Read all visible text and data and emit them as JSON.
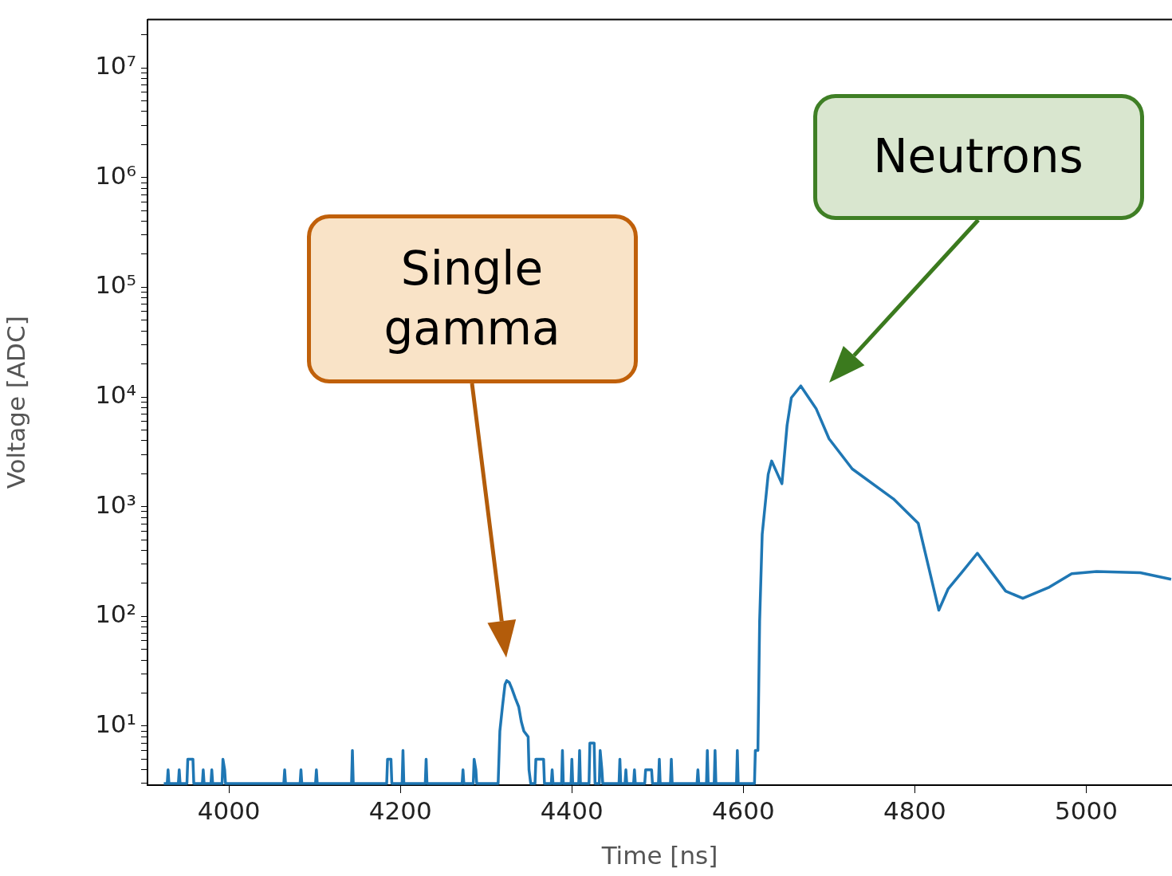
{
  "chart_data": {
    "type": "line",
    "xlabel": "Time [ns]",
    "ylabel": "Voltage [ADC]",
    "log": "y",
    "grid": false,
    "legend": false,
    "marker": "none",
    "line_style": "solid",
    "xlim": [
      3905,
      5100
    ],
    "xticks": [
      4000,
      4200,
      4400,
      4600,
      4800,
      5000
    ],
    "ylim": [
      2.9,
      27500000
    ],
    "yticks": [
      {
        "value": 3,
        "label": null
      },
      {
        "value": 4,
        "label": null
      },
      {
        "value": 5,
        "label": null
      },
      {
        "value": 6,
        "label": null
      },
      {
        "value": 7,
        "label": null
      },
      {
        "value": 8,
        "label": null
      },
      {
        "value": 9,
        "label": null
      },
      {
        "value": 10,
        "label": "10¹"
      },
      {
        "value": 20,
        "label": null
      },
      {
        "value": 30,
        "label": null
      },
      {
        "value": 40,
        "label": null
      },
      {
        "value": 50,
        "label": null
      },
      {
        "value": 60,
        "label": null
      },
      {
        "value": 70,
        "label": null
      },
      {
        "value": 80,
        "label": null
      },
      {
        "value": 90,
        "label": null
      },
      {
        "value": 100,
        "label": "10²"
      },
      {
        "value": 200,
        "label": null
      },
      {
        "value": 300,
        "label": null
      },
      {
        "value": 400,
        "label": null
      },
      {
        "value": 500,
        "label": null
      },
      {
        "value": 600,
        "label": null
      },
      {
        "value": 700,
        "label": null
      },
      {
        "value": 800,
        "label": null
      },
      {
        "value": 900,
        "label": null
      },
      {
        "value": 1000,
        "label": "10³"
      },
      {
        "value": 2000,
        "label": null
      },
      {
        "value": 3000,
        "label": null
      },
      {
        "value": 4000,
        "label": null
      },
      {
        "value": 5000,
        "label": null
      },
      {
        "value": 6000,
        "label": null
      },
      {
        "value": 7000,
        "label": null
      },
      {
        "value": 8000,
        "label": null
      },
      {
        "value": 9000,
        "label": null
      },
      {
        "value": 10000,
        "label": "10⁴"
      },
      {
        "value": 20000,
        "label": null
      },
      {
        "value": 30000,
        "label": null
      },
      {
        "value": 40000,
        "label": null
      },
      {
        "value": 50000,
        "label": null
      },
      {
        "value": 60000,
        "label": null
      },
      {
        "value": 70000,
        "label": null
      },
      {
        "value": 80000,
        "label": null
      },
      {
        "value": 90000,
        "label": null
      },
      {
        "value": 100000,
        "label": "10⁵"
      },
      {
        "value": 200000,
        "label": null
      },
      {
        "value": 300000,
        "label": null
      },
      {
        "value": 400000,
        "label": null
      },
      {
        "value": 500000,
        "label": null
      },
      {
        "value": 600000,
        "label": null
      },
      {
        "value": 700000,
        "label": null
      },
      {
        "value": 800000,
        "label": null
      },
      {
        "value": 900000,
        "label": null
      },
      {
        "value": 1000000,
        "label": "10⁶"
      },
      {
        "value": 2000000,
        "label": null
      },
      {
        "value": 3000000,
        "label": null
      },
      {
        "value": 4000000,
        "label": null
      },
      {
        "value": 5000000,
        "label": null
      },
      {
        "value": 6000000,
        "label": null
      },
      {
        "value": 7000000,
        "label": null
      },
      {
        "value": 8000000,
        "label": null
      },
      {
        "value": 9000000,
        "label": null
      },
      {
        "value": 10000000,
        "label": "10⁷"
      },
      {
        "value": 20000000,
        "label": null
      }
    ],
    "series": [
      {
        "color": "#1f77b4",
        "x": [
          3924,
          3928,
          3929,
          3930,
          3941,
          3942,
          3943,
          3951,
          3952,
          3958,
          3959,
          3969,
          3970,
          3971,
          3979,
          3980,
          3981,
          3992,
          3993,
          3995,
          3996,
          4064,
          4065,
          4066,
          4083,
          4084,
          4085,
          4101,
          4102,
          4103,
          4143,
          4144,
          4145,
          4184,
          4185,
          4189,
          4190,
          4202,
          4203,
          4204,
          4229,
          4230,
          4231,
          4272,
          4273,
          4274,
          4285,
          4286,
          4288,
          4289,
          4314,
          4316,
          4319,
          4322,
          4324,
          4327,
          4330,
          4334,
          4338,
          4341,
          4344,
          4349,
          4350,
          4352,
          4357,
          4358,
          4367,
          4368,
          4376,
          4377,
          4378,
          4388,
          4389,
          4390,
          4399,
          4400,
          4401,
          4408,
          4409,
          4410,
          4420,
          4421,
          4426,
          4427,
          4432,
          4433,
          4435,
          4436,
          4455,
          4456,
          4457,
          4462,
          4463,
          4464,
          4472,
          4473,
          4474,
          4485,
          4486,
          4493,
          4494,
          4501,
          4502,
          4503,
          4515,
          4516,
          4517,
          4546,
          4547,
          4548,
          4557,
          4558,
          4559,
          4566,
          4567,
          4568,
          4592,
          4593,
          4594,
          4613,
          4614,
          4617,
          4619,
          4622,
          4629,
          4633,
          4645,
          4651,
          4656,
          4667,
          4685,
          4700,
          4727,
          4775,
          4791,
          4804,
          4816,
          4828,
          4839,
          4855,
          4873,
          4906,
          4926,
          4957,
          4983,
          5012,
          5063,
          5099
        ],
        "values": [
          3,
          3,
          4,
          3,
          3,
          4,
          3,
          3,
          5,
          5,
          3,
          3,
          4,
          3,
          3,
          4,
          3,
          3,
          5,
          4,
          3,
          3,
          4,
          3,
          3,
          4,
          3,
          3,
          4,
          3,
          3,
          6,
          3,
          3,
          5,
          5,
          3,
          3,
          6,
          3,
          3,
          5,
          3,
          3,
          4,
          3,
          3,
          5,
          4,
          3,
          3,
          9,
          15,
          24,
          26,
          25,
          22,
          18,
          15,
          11,
          9,
          8,
          4,
          3,
          3,
          5,
          5,
          3,
          3,
          4,
          3,
          3,
          6,
          3,
          3,
          5,
          3,
          3,
          6,
          3,
          3,
          7,
          7,
          3,
          3,
          6,
          4,
          3,
          3,
          5,
          3,
          3,
          4,
          3,
          3,
          4,
          3,
          3,
          4,
          4,
          3,
          3,
          5,
          3,
          3,
          5,
          3,
          3,
          4,
          3,
          3,
          6,
          3,
          3,
          6,
          3,
          3,
          6,
          3,
          3,
          6,
          6,
          90,
          560,
          1970,
          2610,
          1620,
          5500,
          9840,
          12600,
          7800,
          4160,
          2210,
          1180,
          890,
          706,
          284,
          114,
          179,
          253,
          377,
          170,
          146,
          185,
          245,
          257,
          250,
          218
        ]
      }
    ],
    "annotations": [
      "Single gamma",
      "Neutrons"
    ]
  }
}
